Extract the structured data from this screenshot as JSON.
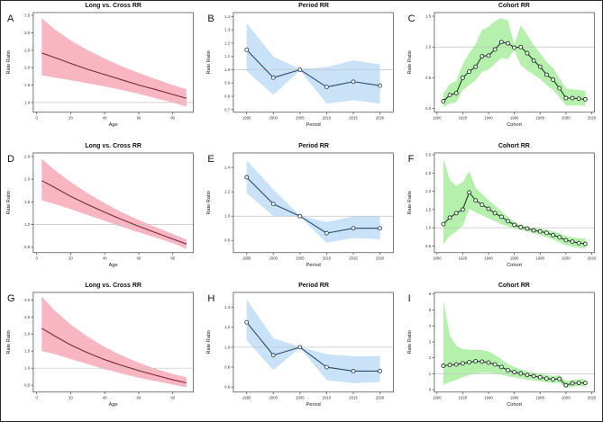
{
  "figure": {
    "background": "#ffffff",
    "border_color": "#2a2a2a",
    "layout": "3x3 panel grid of age-period-cohort rate-ratio plots",
    "reference_line_color": "#c4c4c4"
  },
  "chart_data": [
    {
      "id": "A",
      "title": "Long vs. Cross RR",
      "type": "area",
      "xlabel": "Age",
      "ylabel": "Rate Ratio",
      "xlim": [
        -2,
        92
      ],
      "ylim": [
        0.72,
        3.58
      ],
      "xticks": [
        "0",
        "20",
        "40",
        "60",
        "80"
      ],
      "yticks": [
        "1.0",
        "1.5",
        "2.0",
        "2.5",
        "3.0",
        "3.5"
      ],
      "ref_line": 1.0,
      "markers": false,
      "grid": false,
      "band_color": "#f7b6c2",
      "line_color": "#7a2836",
      "x": [
        3,
        10,
        20,
        30,
        40,
        50,
        60,
        70,
        80,
        88
      ],
      "y": [
        2.42,
        2.3,
        2.12,
        1.95,
        1.8,
        1.65,
        1.5,
        1.37,
        1.23,
        1.12
      ],
      "band_upper": [
        3.42,
        3.12,
        2.78,
        2.5,
        2.26,
        2.04,
        1.85,
        1.67,
        1.5,
        1.38
      ],
      "band_lower": [
        1.78,
        1.72,
        1.64,
        1.55,
        1.46,
        1.36,
        1.25,
        1.12,
        1.0,
        0.88
      ]
    },
    {
      "id": "B",
      "title": "Period RR",
      "type": "line",
      "xlabel": "Period",
      "ylabel": "Rate Ratio",
      "xlim": [
        1992.5,
        2022.5
      ],
      "ylim": [
        0.68,
        1.43
      ],
      "xticks": [
        "1995",
        "2000",
        "2005",
        "2010",
        "2015",
        "2020"
      ],
      "yticks": [
        "0.7",
        "0.8",
        "0.9",
        "1.0",
        "1.1",
        "1.2",
        "1.3",
        "1.4"
      ],
      "ref_line": 1.0,
      "markers": true,
      "grid": false,
      "band_color": "#c9e2f8",
      "line_color": "#2b4a68",
      "x": [
        1995,
        2000,
        2005,
        2010,
        2015,
        2020
      ],
      "y": [
        1.15,
        0.94,
        1.0,
        0.87,
        0.91,
        0.88
      ],
      "band_upper": [
        1.35,
        1.1,
        1.005,
        1.02,
        1.07,
        1.04
      ],
      "band_lower": [
        0.99,
        0.81,
        0.995,
        0.745,
        0.77,
        0.745
      ]
    },
    {
      "id": "C",
      "title": "Cohort RR",
      "type": "line",
      "xlabel": "Cohort",
      "ylabel": "Rate Ratio",
      "xlim": [
        1898,
        2022
      ],
      "ylim": [
        -0.06,
        1.56
      ],
      "xticks": [
        "1900",
        "1920",
        "1940",
        "1960",
        "1980",
        "2000",
        "2020"
      ],
      "yticks": [
        "0.0",
        "0.5",
        "1.0",
        "1.5"
      ],
      "ref_line": 1.0,
      "markers": true,
      "grid": false,
      "band_color": "#b6f0ad",
      "line_color": "#1c3b20",
      "x": [
        1905,
        1910,
        1915,
        1920,
        1925,
        1930,
        1935,
        1940,
        1945,
        1950,
        1955,
        1960,
        1965,
        1970,
        1975,
        1980,
        1985,
        1990,
        1995,
        2000,
        2005,
        2010,
        2015
      ],
      "y": [
        0.12,
        0.22,
        0.25,
        0.5,
        0.6,
        0.68,
        0.85,
        0.86,
        0.96,
        1.08,
        1.06,
        0.99,
        1.0,
        0.9,
        0.78,
        0.68,
        0.55,
        0.47,
        0.33,
        0.17,
        0.17,
        0.16,
        0.15
      ],
      "band_upper": [
        0.25,
        0.4,
        0.45,
        0.72,
        0.9,
        1.05,
        1.28,
        1.33,
        1.42,
        1.47,
        1.43,
        1.05,
        1.35,
        1.2,
        1.03,
        0.9,
        0.76,
        0.66,
        0.5,
        0.33,
        0.31,
        0.3,
        0.29
      ],
      "band_lower": [
        0.02,
        0.08,
        0.1,
        0.3,
        0.38,
        0.46,
        0.6,
        0.63,
        0.73,
        0.82,
        0.8,
        0.95,
        0.7,
        0.62,
        0.55,
        0.48,
        0.38,
        0.3,
        0.18,
        0.05,
        0.05,
        0.05,
        0.04
      ]
    },
    {
      "id": "D",
      "title": "Long vs. Cross RR",
      "type": "area",
      "xlabel": "Age",
      "ylabel": "Rate Ratio",
      "xlim": [
        -2,
        92
      ],
      "ylim": [
        0.38,
        2.58
      ],
      "xticks": [
        "0",
        "20",
        "40",
        "60",
        "80"
      ],
      "yticks": [
        "0.5",
        "1.0",
        "1.5",
        "2.0",
        "2.5"
      ],
      "ref_line": 1.0,
      "markers": false,
      "grid": false,
      "band_color": "#f7b6c2",
      "line_color": "#7a2836",
      "x": [
        3,
        10,
        20,
        30,
        40,
        50,
        60,
        70,
        80,
        88
      ],
      "y": [
        1.97,
        1.83,
        1.62,
        1.44,
        1.27,
        1.11,
        0.96,
        0.82,
        0.68,
        0.57
      ],
      "band_upper": [
        2.45,
        2.22,
        1.94,
        1.69,
        1.47,
        1.27,
        1.1,
        0.94,
        0.79,
        0.67
      ],
      "band_lower": [
        1.53,
        1.46,
        1.34,
        1.21,
        1.08,
        0.95,
        0.83,
        0.71,
        0.59,
        0.46
      ]
    },
    {
      "id": "E",
      "title": "Period RR",
      "type": "line",
      "xlabel": "Period",
      "ylabel": "Rate Ratio",
      "xlim": [
        1992.5,
        2022.5
      ],
      "ylim": [
        0.7,
        1.52
      ],
      "xticks": [
        "1995",
        "2000",
        "2005",
        "2010",
        "2015",
        "2020"
      ],
      "yticks": [
        "0.8",
        "1.0",
        "1.2",
        "1.4"
      ],
      "ref_line": 1.0,
      "markers": true,
      "grid": false,
      "band_color": "#c9e2f8",
      "line_color": "#2b4a68",
      "x": [
        1995,
        2000,
        2005,
        2010,
        2015,
        2020
      ],
      "y": [
        1.32,
        1.1,
        1.0,
        0.86,
        0.9,
        0.9
      ],
      "band_upper": [
        1.46,
        1.22,
        1.005,
        0.95,
        1.0,
        1.0
      ],
      "band_lower": [
        1.19,
        1.0,
        0.995,
        0.78,
        0.82,
        0.81
      ]
    },
    {
      "id": "F",
      "title": "Cohort RR",
      "type": "line",
      "xlabel": "Cohort",
      "ylabel": "Rate Ratio",
      "xlim": [
        1898,
        2022
      ],
      "ylim": [
        0.32,
        3.05
      ],
      "xticks": [
        "1900",
        "1920",
        "1940",
        "1960",
        "1980",
        "2000",
        "2020"
      ],
      "yticks": [
        "0.5",
        "1.0",
        "1.5",
        "2.0",
        "2.5",
        "3.0"
      ],
      "ref_line": 1.0,
      "markers": true,
      "grid": false,
      "band_color": "#b6f0ad",
      "line_color": "#1c3b20",
      "x": [
        1905,
        1910,
        1915,
        1920,
        1925,
        1930,
        1935,
        1940,
        1945,
        1950,
        1955,
        1960,
        1965,
        1970,
        1975,
        1980,
        1985,
        1990,
        1995,
        2000,
        2005,
        2010,
        2015
      ],
      "y": [
        1.1,
        1.28,
        1.4,
        1.5,
        1.97,
        1.75,
        1.63,
        1.52,
        1.4,
        1.3,
        1.18,
        1.08,
        1.02,
        0.98,
        0.93,
        0.9,
        0.86,
        0.8,
        0.74,
        0.66,
        0.62,
        0.58,
        0.56
      ],
      "band_upper": [
        2.9,
        2.3,
        2.15,
        2.25,
        2.55,
        2.1,
        1.92,
        1.76,
        1.6,
        1.46,
        1.3,
        1.16,
        1.08,
        1.03,
        1.0,
        0.98,
        0.95,
        0.9,
        0.85,
        0.78,
        0.74,
        0.72,
        0.7
      ],
      "band_lower": [
        0.55,
        0.78,
        0.9,
        1.05,
        1.52,
        1.42,
        1.34,
        1.26,
        1.18,
        1.1,
        1.04,
        0.98,
        0.94,
        0.9,
        0.85,
        0.8,
        0.74,
        0.68,
        0.6,
        0.52,
        0.48,
        0.45,
        0.43
      ]
    },
    {
      "id": "G",
      "title": "Long vs. Cross RR",
      "type": "area",
      "xlabel": "Age",
      "ylabel": "Rate Ratio",
      "xlim": [
        -2,
        92
      ],
      "ylim": [
        0.3,
        3.22
      ],
      "xticks": [
        "0",
        "20",
        "40",
        "60",
        "80"
      ],
      "yticks": [
        "0.5",
        "1.0",
        "1.5",
        "2.0",
        "2.5",
        "3.0"
      ],
      "ref_line": 1.0,
      "markers": false,
      "grid": false,
      "band_color": "#f7b6c2",
      "line_color": "#7a2836",
      "x": [
        3,
        10,
        20,
        30,
        40,
        50,
        60,
        70,
        80,
        88
      ],
      "y": [
        2.17,
        1.96,
        1.68,
        1.45,
        1.25,
        1.08,
        0.93,
        0.79,
        0.66,
        0.57
      ],
      "band_upper": [
        3.1,
        2.72,
        2.28,
        1.92,
        1.62,
        1.37,
        1.16,
        0.98,
        0.83,
        0.73
      ],
      "band_lower": [
        1.5,
        1.42,
        1.27,
        1.12,
        0.97,
        0.84,
        0.72,
        0.62,
        0.52,
        0.44
      ]
    },
    {
      "id": "H",
      "title": "Period RR",
      "type": "line",
      "xlabel": "Period",
      "ylabel": "Rate Ratio",
      "xlim": [
        1992.5,
        2022.5
      ],
      "ylim": [
        0.55,
        1.55
      ],
      "xticks": [
        "1995",
        "2000",
        "2005",
        "2010",
        "2015",
        "2020"
      ],
      "yticks": [
        "0.6",
        "0.8",
        "1.0",
        "1.2",
        "1.4"
      ],
      "ref_line": 1.0,
      "markers": true,
      "grid": false,
      "band_color": "#c9e2f8",
      "line_color": "#2b4a68",
      "x": [
        1995,
        2000,
        2005,
        2010,
        2015,
        2020
      ],
      "y": [
        1.25,
        0.92,
        1.0,
        0.8,
        0.76,
        0.76
      ],
      "band_upper": [
        1.48,
        1.09,
        1.005,
        0.93,
        0.91,
        0.91
      ],
      "band_lower": [
        1.07,
        0.77,
        0.995,
        0.67,
        0.64,
        0.65
      ]
    },
    {
      "id": "I",
      "title": "Cohort RR",
      "type": "line",
      "xlabel": "Cohort",
      "ylabel": "Rate Ratio",
      "xlim": [
        1898,
        2022
      ],
      "ylim": [
        -0.15,
        6.1
      ],
      "xticks": [
        "1900",
        "1920",
        "1940",
        "1960",
        "1980",
        "2000",
        "2020"
      ],
      "yticks": [
        "0",
        "1",
        "2",
        "3",
        "4",
        "5",
        "6"
      ],
      "ref_line": 1.0,
      "markers": true,
      "grid": false,
      "band_color": "#b6f0ad",
      "line_color": "#1c3b20",
      "x": [
        1905,
        1910,
        1915,
        1920,
        1925,
        1930,
        1935,
        1940,
        1945,
        1950,
        1955,
        1960,
        1965,
        1970,
        1975,
        1980,
        1985,
        1990,
        1995,
        2000,
        2005,
        2010,
        2015
      ],
      "y": [
        1.5,
        1.55,
        1.58,
        1.65,
        1.72,
        1.78,
        1.76,
        1.7,
        1.58,
        1.42,
        1.22,
        1.1,
        1.02,
        0.92,
        0.85,
        0.78,
        0.7,
        0.65,
        0.68,
        0.28,
        0.4,
        0.42,
        0.42
      ],
      "band_upper": [
        5.6,
        3.4,
        2.75,
        2.55,
        2.5,
        2.5,
        2.48,
        2.4,
        2.18,
        1.9,
        1.62,
        1.42,
        1.28,
        1.15,
        1.08,
        1.0,
        0.92,
        0.85,
        0.9,
        0.55,
        0.62,
        0.66,
        0.68
      ],
      "band_lower": [
        0.3,
        0.48,
        0.62,
        0.78,
        0.92,
        1.02,
        1.06,
        1.05,
        1.0,
        0.94,
        0.84,
        0.76,
        0.7,
        0.64,
        0.58,
        0.52,
        0.46,
        0.4,
        0.44,
        0.1,
        0.18,
        0.22,
        0.2
      ]
    }
  ]
}
